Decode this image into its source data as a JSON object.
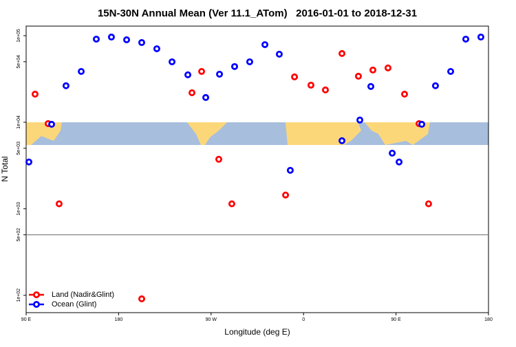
{
  "chart_data": {
    "type": "scatter",
    "title": "15N-30N Annual Mean (Ver 11.1_ATom)   2016-01-01 to 2018-12-31",
    "x_label": "Longitude (deg E)",
    "y_label": "N Total",
    "log_y": true,
    "legend": "bottom-left",
    "xlim": [
      90,
      540
    ],
    "xticks": [
      {
        "value": 90,
        "label": "90 E"
      },
      180,
      {
        "value": 270,
        "label": "90 W"
      },
      {
        "value": 360,
        "label": "0"
      },
      {
        "value": 450,
        "label": "90 E"
      },
      {
        "value": 540,
        "label": "180"
      }
    ],
    "ylim": [
      63,
      129000
    ],
    "yticks": [
      {
        "value": 100,
        "label": "1e+02"
      },
      {
        "value": 500,
        "label": "5e+02"
      },
      {
        "value": 1000,
        "label": "1e+03"
      },
      {
        "value": 5000,
        "label": "5e+03"
      },
      {
        "value": 10000,
        "label": "1e+04"
      },
      {
        "value": 50000,
        "label": "5e+04"
      },
      {
        "value": 100000,
        "label": "1e+05"
      }
    ],
    "hline": 500,
    "series": [
      {
        "name": "Land (Nadir&Glint)",
        "color": "#ff0000",
        "x": [
          98.7,
          111.4,
          122.1,
          202.5,
          251.4,
          260.8,
          277.5,
          290.2,
          342.5,
          351.2,
          367.2,
          381.3,
          397.4,
          413.4,
          427.5,
          442.2,
          458.3,
          472.4,
          481.7
        ],
        "values": [
          21100,
          9640,
          1140,
          91,
          21900,
          38600,
          3730,
          1140,
          1440,
          33400,
          26800,
          23600,
          62200,
          34000,
          40100,
          42400,
          21100,
          9640,
          1140
        ]
      },
      {
        "name": "Ocean (Glint)",
        "color": "#0000ff",
        "x": [
          92.7,
          114.8,
          128.8,
          143.6,
          158.3,
          173,
          187.8,
          202.5,
          217.2,
          232,
          247.4,
          264.8,
          278.2,
          292.9,
          307.6,
          322.4,
          336.4,
          347.1,
          397.4,
          414.8,
          425.5,
          446.3,
          453,
          475.1,
          488.4,
          503.2,
          517.9,
          532.6
        ],
        "values": [
          3470,
          9460,
          26400,
          38600,
          91200,
          96400,
          89600,
          83300,
          70600,
          49900,
          35300,
          19300,
          35900,
          44000,
          49900,
          78800,
          61100,
          2780,
          6110,
          10600,
          25900,
          4390,
          3470,
          9460,
          26400,
          38600,
          91200,
          96400
        ]
      }
    ]
  }
}
